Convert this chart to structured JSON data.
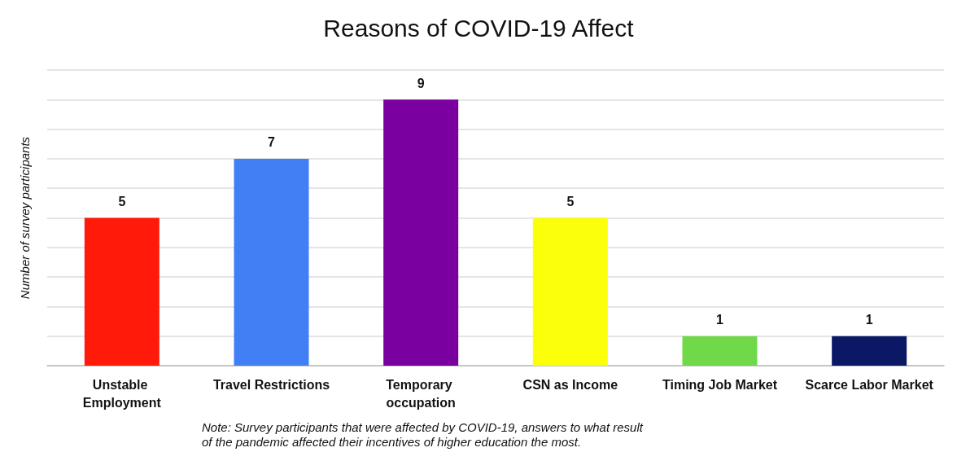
{
  "chart_data": {
    "type": "bar",
    "title": "Reasons of COVID-19 Affect",
    "ylabel": "Number of survey participants",
    "categories": [
      "Unstable Employment",
      "Travel Restrictions",
      "Temporary occupation",
      "CSN as Income",
      "Timing Job Market",
      "Scarce Labor Market"
    ],
    "values": [
      5,
      7,
      9,
      5,
      1,
      1
    ],
    "colors": [
      "#ff1a0a",
      "#4180f4",
      "#7b00a0",
      "#fbff0a",
      "#6fd94a",
      "#0a1866"
    ],
    "ylim": [
      0,
      10
    ],
    "yticks": [
      {
        "value": 0,
        "label": null
      },
      {
        "value": 1,
        "label": null
      },
      {
        "value": 2,
        "label": null
      },
      {
        "value": 3,
        "label": null
      },
      {
        "value": 4,
        "label": null
      },
      {
        "value": 5,
        "label": null
      },
      {
        "value": 6,
        "label": null
      },
      {
        "value": 7,
        "label": null
      },
      {
        "value": 8,
        "label": null
      },
      {
        "value": 9,
        "label": null
      },
      {
        "value": 10,
        "label": null
      }
    ],
    "tick_labels": "x",
    "grid": "y",
    "data_labels": true,
    "annotations": [
      "Note: Survey participants that were affected by COVID-19, answers to what result of the pandemic affected their incentives of higher education the most."
    ]
  }
}
